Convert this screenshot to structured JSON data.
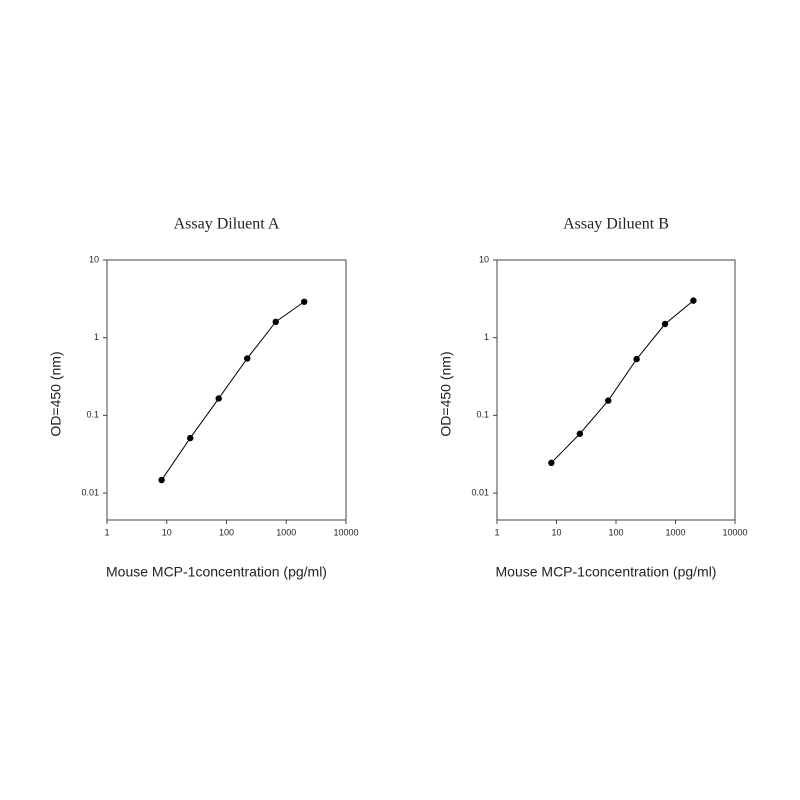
{
  "chart_data": [
    {
      "type": "line",
      "title": "Assay Diluent A",
      "x_label": "Mouse MCP-1concentration (pg/ml)",
      "y_label": "OD=450 (nm)",
      "log_x": true,
      "log_y": true,
      "xlim": [
        1,
        10000
      ],
      "xticks": [
        1,
        10,
        100,
        1000,
        10000
      ],
      "ylim": [
        0.0045,
        10
      ],
      "yticks": [
        0.01,
        0.1,
        1,
        10
      ],
      "x": [
        8.2,
        24.7,
        74.1,
        222.2,
        666.7,
        2000
      ],
      "series": [
        {
          "color": "#000000",
          "values": [
            0.0147,
            0.051,
            0.165,
            0.54,
            1.6,
            2.9
          ]
        }
      ]
    },
    {
      "type": "line",
      "title": "Assay Diluent B",
      "x_label": "Mouse MCP-1concentration (pg/ml)",
      "y_label": "OD=450 (nm)",
      "log_x": true,
      "log_y": true,
      "xlim": [
        1,
        10000
      ],
      "xticks": [
        1,
        10,
        100,
        1000,
        10000
      ],
      "ylim": [
        0.0045,
        10
      ],
      "yticks": [
        0.01,
        0.1,
        1,
        10
      ],
      "x": [
        8.2,
        24.7,
        74.1,
        222.2,
        666.7,
        2000
      ],
      "series": [
        {
          "color": "#000000",
          "values": [
            0.0245,
            0.058,
            0.155,
            0.53,
            1.5,
            3.0
          ]
        }
      ]
    }
  ]
}
